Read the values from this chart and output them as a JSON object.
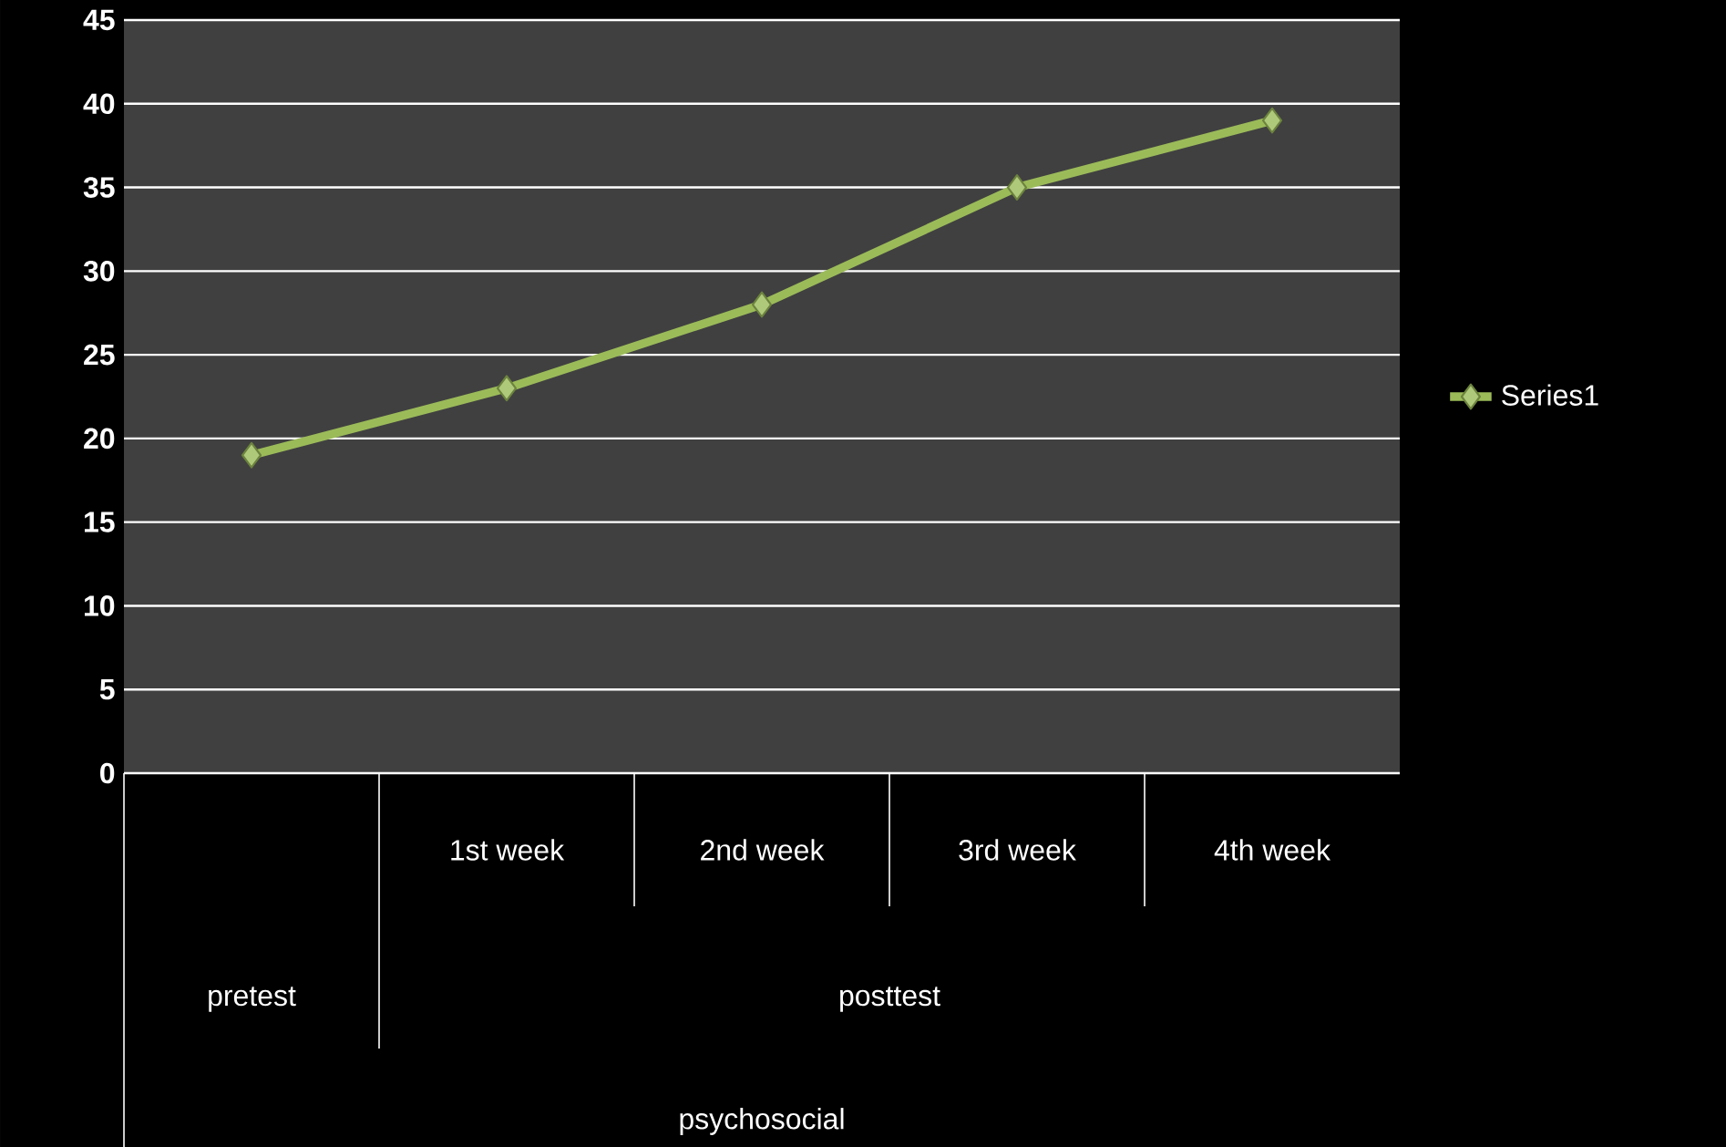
{
  "chart_data": {
    "type": "line",
    "categories": [
      null,
      "1st week",
      "2nd week",
      "3rd week",
      "4th week"
    ],
    "series": [
      {
        "name": "Series1",
        "color": "#9bbb59",
        "values": [
          19,
          23,
          28,
          35,
          39
        ]
      }
    ],
    "ylim": [
      0,
      45
    ],
    "yticks": [
      0,
      5,
      10,
      15,
      20,
      25,
      30,
      35,
      40,
      45
    ],
    "annotations": [
      "pretest",
      "posttest",
      "psychosocial"
    ],
    "grid": "y",
    "legend": "right",
    "marker": "diamond",
    "line_style": "solid"
  }
}
